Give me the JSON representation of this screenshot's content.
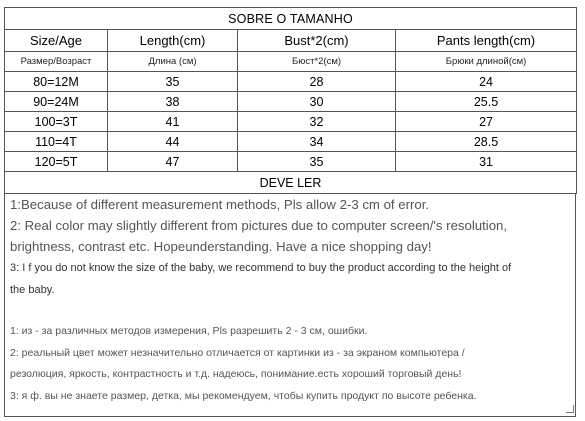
{
  "table": {
    "title": "SOBRE O TAMANHO",
    "headers": [
      "Size/Age",
      "Length(cm)",
      "Bust*2(cm)",
      "Pants length(cm)"
    ],
    "subheaders": [
      "Размер/Возраст",
      "Длина (см)",
      "Бюст*2(см)",
      "Брюки длиной(см)"
    ],
    "rows": [
      [
        "80=12M",
        "35",
        "28",
        "24"
      ],
      [
        "90=24M",
        "38",
        "30",
        "25.5"
      ],
      [
        "100=3T",
        "41",
        "32",
        "27"
      ],
      [
        "110=4T",
        "44",
        "34",
        "28.5"
      ],
      [
        "120=5T",
        "47",
        "35",
        "31"
      ]
    ]
  },
  "notes": {
    "title": "DEVE LER",
    "en": [
      "1:Because of different measurement methods, Pls allow 2-3 cm of error.",
      "2: Real color may slightly different from pictures due to computer screen/'s resolution,",
      "brightness, contrast etc. Hopeunderstanding. Have a nice shopping day!",
      "3: I f you do not know the size of the baby, we recommend to buy the product according to the height of",
      "the baby."
    ],
    "ru": [
      "1: из - за различных методов измерения, Pls разрешить 2 - 3 см, ошибки.",
      "2: реальный цвет может незначительно отличается от картинки из - за экраном компьютера /",
      "резолюция, яркость, контрастность и т.д. надеюсь, понимание.есть хороший торговый день!",
      "3: я ф. вы не знаете размер, детка, мы рекомендуем, чтобы купить продукт по высоте ребенка."
    ]
  }
}
